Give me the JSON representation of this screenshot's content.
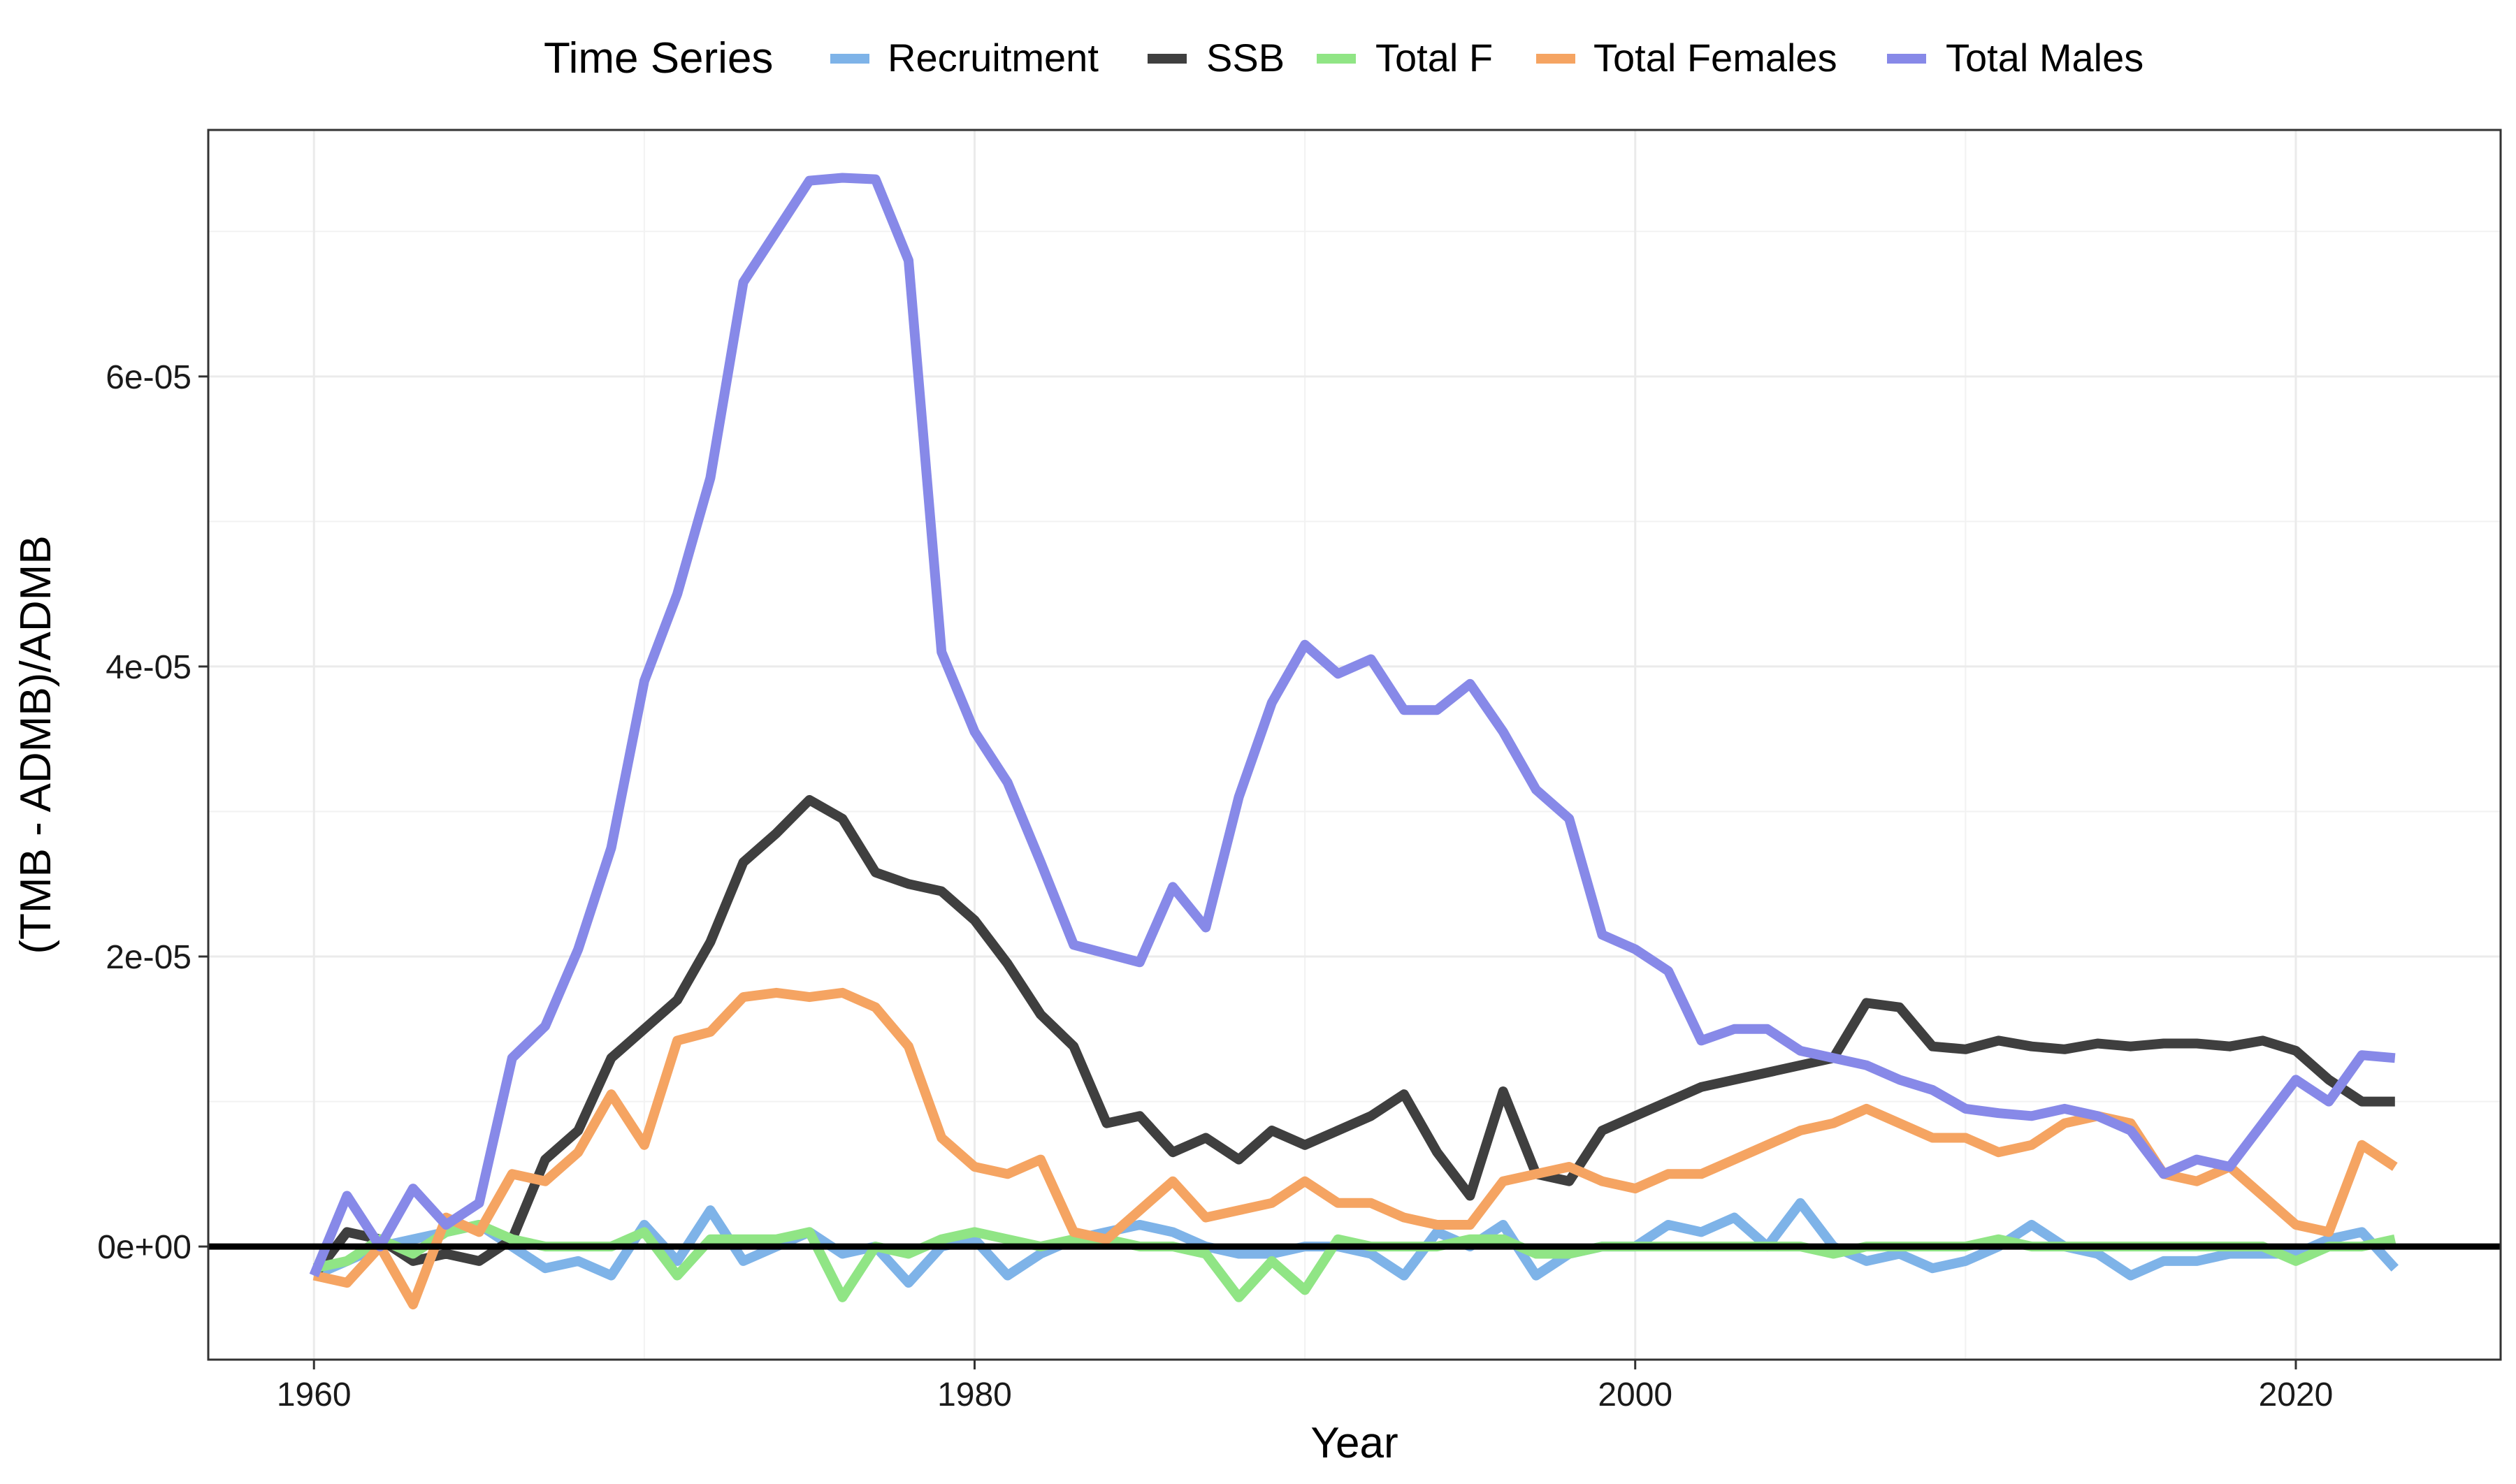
{
  "chart_data": {
    "type": "line",
    "title": "",
    "xlabel": "Year",
    "ylabel": "(TMB - ADMB)/ADMB",
    "xlim": [
      1956.8,
      2026.2
    ],
    "ylim": [
      -7.8e-06,
      7.7e-05
    ],
    "x_ticks": [
      {
        "value": 1960,
        "label": "1960"
      },
      {
        "value": 1980,
        "label": "1980"
      },
      {
        "value": 2000,
        "label": "2000"
      },
      {
        "value": 2020,
        "label": "2020"
      }
    ],
    "y_ticks": [
      {
        "value": 0,
        "label": "0e+00"
      },
      {
        "value": 2e-05,
        "label": "2e-05"
      },
      {
        "value": 4e-05,
        "label": "4e-05"
      },
      {
        "value": 6e-05,
        "label": "6e-05"
      }
    ],
    "grid": true,
    "reference_line": {
      "y": 0,
      "color": "#000000"
    },
    "legend": {
      "title": "Time Series",
      "position": "top"
    },
    "x": [
      1960,
      1961,
      1962,
      1963,
      1964,
      1965,
      1966,
      1967,
      1968,
      1969,
      1970,
      1971,
      1972,
      1973,
      1974,
      1975,
      1976,
      1977,
      1978,
      1979,
      1980,
      1981,
      1982,
      1983,
      1984,
      1985,
      1986,
      1987,
      1988,
      1989,
      1990,
      1991,
      1992,
      1993,
      1994,
      1995,
      1996,
      1997,
      1998,
      1999,
      2000,
      2001,
      2002,
      2003,
      2004,
      2005,
      2006,
      2007,
      2008,
      2009,
      2010,
      2011,
      2012,
      2013,
      2014,
      2015,
      2016,
      2017,
      2018,
      2019,
      2020,
      2021,
      2022,
      2023
    ],
    "series": [
      {
        "name": "Recruitment",
        "color": "#7eb3e8",
        "values": [
          -2e-06,
          -1e-06,
          0.0,
          5e-07,
          1e-06,
          1.5e-06,
          0.0,
          -1.5e-06,
          -1e-06,
          -2e-06,
          1.5e-06,
          -1e-06,
          2.5e-06,
          -1e-06,
          0.0,
          1e-06,
          -5e-07,
          0.0,
          -2.5e-06,
          0.0,
          5e-07,
          -2e-06,
          -5e-07,
          5e-07,
          1e-06,
          1.5e-06,
          1e-06,
          0.0,
          -5e-07,
          -5e-07,
          0.0,
          0.0,
          -5e-07,
          -2e-06,
          1e-06,
          0.0,
          1.5e-06,
          -2e-06,
          -5e-07,
          0.0,
          0.0,
          1.5e-06,
          1e-06,
          2e-06,
          0.0,
          3e-06,
          0.0,
          -1e-06,
          -5e-07,
          -1.5e-06,
          -1e-06,
          0.0,
          1.5e-06,
          0.0,
          -5e-07,
          -2e-06,
          -1e-06,
          -1e-06,
          -5e-07,
          -5e-07,
          -5e-07,
          5e-07,
          1e-06,
          -1.5e-06
        ]
      },
      {
        "name": "SSB",
        "color": "#3f3f3f",
        "values": [
          -2e-06,
          1e-06,
          5e-07,
          -1e-06,
          -5e-07,
          -1e-06,
          5e-07,
          6e-06,
          8e-06,
          1.3e-05,
          1.5e-05,
          1.7e-05,
          2.1e-05,
          2.65e-05,
          2.85e-05,
          3.08e-05,
          2.95e-05,
          2.58e-05,
          2.5e-05,
          2.45e-05,
          2.25e-05,
          1.95e-05,
          1.6e-05,
          1.38e-05,
          8.5e-06,
          9e-06,
          6.5e-06,
          7.5e-06,
          6e-06,
          8e-06,
          7e-06,
          8e-06,
          9e-06,
          1.05e-05,
          6.5e-06,
          3.5e-06,
          1.07e-05,
          5e-06,
          4.5e-06,
          8e-06,
          9e-06,
          1e-05,
          1.1e-05,
          1.15e-05,
          1.2e-05,
          1.25e-05,
          1.3e-05,
          1.68e-05,
          1.65e-05,
          1.38e-05,
          1.36e-05,
          1.42e-05,
          1.38e-05,
          1.36e-05,
          1.4e-05,
          1.38e-05,
          1.4e-05,
          1.4e-05,
          1.38e-05,
          1.42e-05,
          1.35e-05,
          1.15e-05,
          1e-05,
          1e-05
        ]
      },
      {
        "name": "Total F",
        "color": "#90e585",
        "values": [
          -1.5e-06,
          -1e-06,
          5e-07,
          -5e-07,
          1e-06,
          1.5e-06,
          5e-07,
          0.0,
          0.0,
          0.0,
          1e-06,
          -2e-06,
          5e-07,
          5e-07,
          5e-07,
          1e-06,
          -3.5e-06,
          0.0,
          -5e-07,
          5e-07,
          1e-06,
          5e-07,
          0.0,
          5e-07,
          5e-07,
          0.0,
          0.0,
          -5e-07,
          -3.5e-06,
          -1e-06,
          -3e-06,
          5e-07,
          0.0,
          0.0,
          0.0,
          5e-07,
          5e-07,
          -5e-07,
          -5e-07,
          0.0,
          0.0,
          0.0,
          0.0,
          0.0,
          0.0,
          0.0,
          -5e-07,
          0.0,
          0.0,
          0.0,
          0.0,
          5e-07,
          0.0,
          0.0,
          0.0,
          0.0,
          0.0,
          0.0,
          0.0,
          0.0,
          -1e-06,
          0.0,
          0.0,
          5e-07
        ]
      },
      {
        "name": "Total Females",
        "color": "#f5a462",
        "values": [
          -2e-06,
          -2.5e-06,
          0.0,
          -4e-06,
          2e-06,
          1e-06,
          5e-06,
          4.5e-06,
          6.5e-06,
          1.05e-05,
          7e-06,
          1.42e-05,
          1.48e-05,
          1.72e-05,
          1.75e-05,
          1.72e-05,
          1.75e-05,
          1.65e-05,
          1.38e-05,
          7.5e-06,
          5.5e-06,
          5e-06,
          6e-06,
          1e-06,
          5e-07,
          2.5e-06,
          4.5e-06,
          2e-06,
          2.5e-06,
          3e-06,
          4.5e-06,
          3e-06,
          3e-06,
          2e-06,
          1.5e-06,
          1.5e-06,
          4.5e-06,
          5e-06,
          5.5e-06,
          4.5e-06,
          4e-06,
          5e-06,
          5e-06,
          6e-06,
          7e-06,
          8e-06,
          8.5e-06,
          9.5e-06,
          8.5e-06,
          7.5e-06,
          7.5e-06,
          6.5e-06,
          7e-06,
          8.5e-06,
          9e-06,
          8.5e-06,
          5e-06,
          4.5e-06,
          5.5e-06,
          3.5e-06,
          1.5e-06,
          1e-06,
          7e-06,
          5.5e-06
        ]
      },
      {
        "name": "Total Males",
        "color": "#8789e8",
        "values": [
          -2e-06,
          3.5e-06,
          0.0,
          4e-06,
          1.5e-06,
          3e-06,
          1.3e-05,
          1.52e-05,
          2.05e-05,
          2.75e-05,
          3.9e-05,
          4.5e-05,
          5.3e-05,
          6.65e-05,
          7e-05,
          7.35e-05,
          7.37e-05,
          7.36e-05,
          6.8e-05,
          4.1e-05,
          3.55e-05,
          3.2e-05,
          2.65e-05,
          2.08e-05,
          2.02e-05,
          1.96e-05,
          2.48e-05,
          2.2e-05,
          3.1e-05,
          3.75e-05,
          4.15e-05,
          3.95e-05,
          4.05e-05,
          3.7e-05,
          3.7e-05,
          3.88e-05,
          3.55e-05,
          3.15e-05,
          2.95e-05,
          2.15e-05,
          2.05e-05,
          1.9e-05,
          1.42e-05,
          1.5e-05,
          1.5e-05,
          1.35e-05,
          1.3e-05,
          1.25e-05,
          1.15e-05,
          1.08e-05,
          9.5e-06,
          9.2e-06,
          9e-06,
          9.5e-06,
          9e-06,
          8e-06,
          5e-06,
          6e-06,
          5.5e-06,
          8.5e-06,
          1.15e-05,
          1e-05,
          1.32e-05,
          1.3e-05
        ]
      }
    ]
  }
}
